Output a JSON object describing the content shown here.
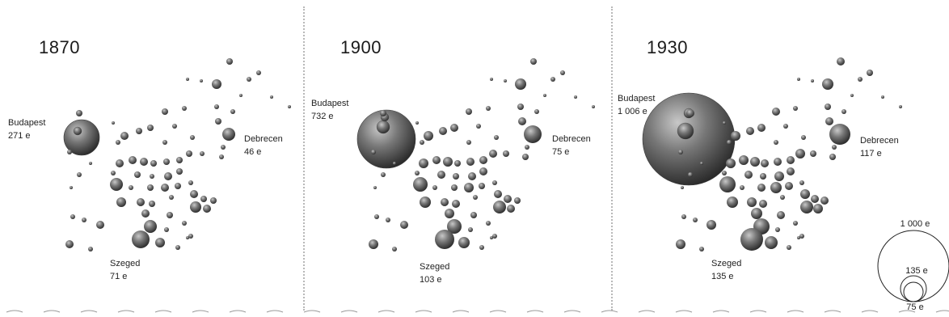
{
  "panels": [
    {
      "year": "1870",
      "cities": [
        {
          "name": "Budapest",
          "value": "271 e"
        },
        {
          "name": "Debrecen",
          "value": "46 e"
        },
        {
          "name": "Szeged",
          "value": "71 e"
        }
      ]
    },
    {
      "year": "1900",
      "cities": [
        {
          "name": "Budapest",
          "value": "732 e"
        },
        {
          "name": "Debrecen",
          "value": "75 e"
        },
        {
          "name": "Szeged",
          "value": "103 e"
        }
      ]
    },
    {
      "year": "1930",
      "cities": [
        {
          "name": "Budapest",
          "value": "1 006 e"
        },
        {
          "name": "Debrecen",
          "value": "117 e"
        },
        {
          "name": "Szeged",
          "value": "135 e"
        }
      ]
    }
  ],
  "size_legend": [
    {
      "label": "1 000 e",
      "value": 1000
    },
    {
      "label": "135 e",
      "value": 135
    },
    {
      "label": "75 e",
      "value": 75
    }
  ],
  "chart_data": {
    "type": "scatter",
    "encoding": "bubble map of Hungarian city populations (thousands), bubble area proportional to population",
    "unit": "e",
    "series": [
      {
        "name": "1870",
        "points": [
          {
            "city": "Budapest",
            "value": 271
          },
          {
            "city": "Debrecen",
            "value": 46
          },
          {
            "city": "Szeged",
            "value": 71
          }
        ]
      },
      {
        "name": "1900",
        "points": [
          {
            "city": "Budapest",
            "value": 732
          },
          {
            "city": "Debrecen",
            "value": 75
          },
          {
            "city": "Szeged",
            "value": 103
          }
        ]
      },
      {
        "name": "1930",
        "points": [
          {
            "city": "Budapest",
            "value": 1006
          },
          {
            "city": "Debrecen",
            "value": 117
          },
          {
            "city": "Szeged",
            "value": 135
          }
        ]
      }
    ]
  },
  "colors": {
    "bubble_light": "#bdbdbd",
    "bubble_mid": "#6e6e6e",
    "bubble_dark": "#2e2e2e",
    "divider": "#b8b8b8"
  }
}
